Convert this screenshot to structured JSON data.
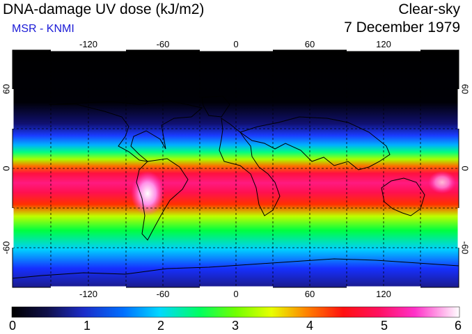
{
  "header": {
    "title": "DNA-damage UV dose (kJ/m2)",
    "credit": "MSR - KNMI",
    "condition": "Clear-sky",
    "date": "7 December 1979"
  },
  "colors": {
    "credit": "#1a1ad6",
    "scale": [
      "#000000",
      "#1b1b8c",
      "#0033ff",
      "#00c8ff",
      "#00ff40",
      "#c8ff00",
      "#ff3300",
      "#ff1050",
      "#ff30c8",
      "#ffffff"
    ]
  },
  "axes": {
    "lon_ticks": [
      "-120",
      "-60",
      "0",
      "60",
      "120"
    ],
    "lat_ticks": [
      "60",
      "0",
      "-60"
    ]
  },
  "colorbar": {
    "min": 0,
    "max": 6,
    "labels": [
      "0",
      "1",
      "2",
      "3",
      "4",
      "5",
      "6"
    ]
  }
}
